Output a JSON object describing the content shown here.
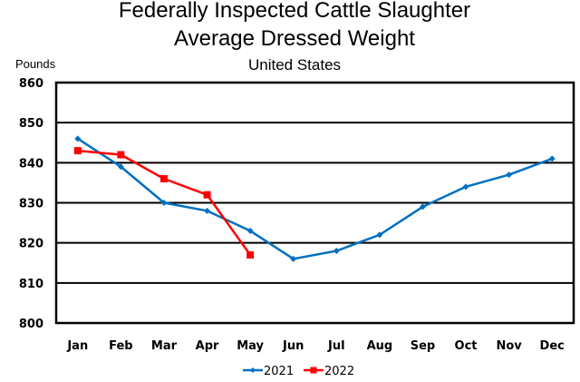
{
  "chart_data": {
    "type": "line",
    "title": "Federally Inspected Cattle Slaughter",
    "subtitle": "Average Dressed Weight",
    "subtitle2": "United States",
    "xlabel": "",
    "ylabel": "Pounds",
    "ylim": [
      800,
      860
    ],
    "yticks": [
      800,
      810,
      820,
      830,
      840,
      850,
      860
    ],
    "ytick_labels": [
      "800",
      "810",
      "820",
      "830",
      "840",
      "850",
      "860"
    ],
    "grid": true,
    "legend_position": "bottom",
    "categories": [
      "Jan",
      "Feb",
      "Mar",
      "Apr",
      "May",
      "Jun",
      "Jul",
      "Aug",
      "Sep",
      "Oct",
      "Nov",
      "Dec"
    ],
    "series": [
      {
        "name": "2021",
        "color": "#0070C0",
        "marker": "diamond",
        "values": [
          846,
          839,
          830,
          828,
          823,
          816,
          818,
          822,
          829,
          834,
          837,
          841
        ]
      },
      {
        "name": "2022",
        "color": "#FF0000",
        "marker": "square",
        "values": [
          843,
          842,
          836,
          832,
          817
        ]
      }
    ]
  }
}
